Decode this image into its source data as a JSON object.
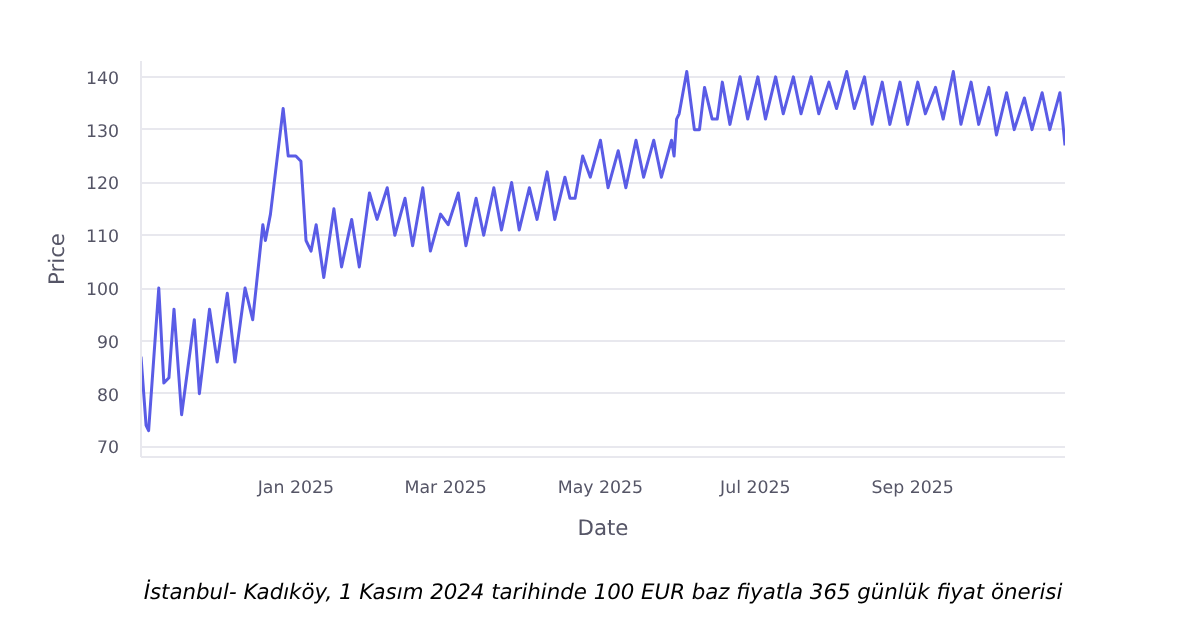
{
  "chart_data": {
    "type": "line",
    "xlabel": "Date",
    "ylabel": "Price",
    "x": [
      "2024-11-01",
      "2024-11-03",
      "2024-11-04",
      "2024-11-08",
      "2024-11-10",
      "2024-11-12",
      "2024-11-14",
      "2024-11-17",
      "2024-11-22",
      "2024-11-24",
      "2024-11-28",
      "2024-12-01",
      "2024-12-05",
      "2024-12-08",
      "2024-12-12",
      "2024-12-15",
      "2024-12-19",
      "2024-12-20",
      "2024-12-22",
      "2024-12-27",
      "2024-12-29",
      "2025-01-01",
      "2025-01-03",
      "2025-01-05",
      "2025-01-07",
      "2025-01-09",
      "2025-01-12",
      "2025-01-16",
      "2025-01-19",
      "2025-01-23",
      "2025-01-26",
      "2025-01-30",
      "2025-02-02",
      "2025-02-06",
      "2025-02-09",
      "2025-02-13",
      "2025-02-16",
      "2025-02-20",
      "2025-02-23",
      "2025-02-27",
      "2025-03-02",
      "2025-03-06",
      "2025-03-09",
      "2025-03-13",
      "2025-03-16",
      "2025-03-20",
      "2025-03-23",
      "2025-03-27",
      "2025-03-30",
      "2025-04-03",
      "2025-04-06",
      "2025-04-10",
      "2025-04-13",
      "2025-04-17",
      "2025-04-19",
      "2025-04-21",
      "2025-04-24",
      "2025-04-27",
      "2025-05-01",
      "2025-05-04",
      "2025-05-08",
      "2025-05-11",
      "2025-05-15",
      "2025-05-18",
      "2025-05-22",
      "2025-05-25",
      "2025-05-29",
      "2025-05-30",
      "2025-05-31",
      "2025-06-01",
      "2025-06-04",
      "2025-06-07",
      "2025-06-09",
      "2025-06-11",
      "2025-06-14",
      "2025-06-16",
      "2025-06-18",
      "2025-06-21",
      "2025-06-25",
      "2025-06-28",
      "2025-07-02",
      "2025-07-05",
      "2025-07-09",
      "2025-07-12",
      "2025-07-16",
      "2025-07-19",
      "2025-07-23",
      "2025-07-26",
      "2025-07-30",
      "2025-08-02",
      "2025-08-06",
      "2025-08-09",
      "2025-08-13",
      "2025-08-16",
      "2025-08-20",
      "2025-08-23",
      "2025-08-27",
      "2025-08-30",
      "2025-09-03",
      "2025-09-06",
      "2025-09-10",
      "2025-09-13",
      "2025-09-17",
      "2025-09-20",
      "2025-09-24",
      "2025-09-27",
      "2025-10-01",
      "2025-10-04",
      "2025-10-08",
      "2025-10-11",
      "2025-10-15",
      "2025-10-18",
      "2025-10-22",
      "2025-10-25",
      "2025-10-29",
      "2025-10-31"
    ],
    "series": [
      {
        "color": "#5a5ce6",
        "values": [
          87,
          74,
          73,
          100,
          82,
          83,
          96,
          76,
          94,
          80,
          96,
          86,
          99,
          86,
          100,
          94,
          112,
          109,
          114,
          134,
          125,
          125,
          124,
          109,
          107,
          112,
          102,
          115,
          104,
          113,
          104,
          118,
          113,
          119,
          110,
          117,
          108,
          119,
          107,
          114,
          112,
          118,
          108,
          117,
          110,
          119,
          111,
          120,
          111,
          119,
          113,
          122,
          113,
          121,
          117,
          117,
          125,
          121,
          128,
          119,
          126,
          119,
          128,
          121,
          128,
          121,
          128,
          125,
          132,
          133,
          141,
          130,
          130,
          138,
          132,
          132,
          139,
          131,
          140,
          132,
          140,
          132,
          140,
          133,
          140,
          133,
          140,
          133,
          139,
          134,
          141,
          134,
          140,
          131,
          139,
          131,
          139,
          131,
          139,
          133,
          138,
          132,
          141,
          131,
          139,
          131,
          138,
          129,
          137,
          130,
          136,
          130,
          137,
          130,
          137,
          127
        ]
      }
    ],
    "xlim": [
      "2024-11-01",
      "2025-10-31"
    ],
    "xticks": [
      {
        "value": "2025-01-01",
        "label": "Jan 2025"
      },
      {
        "value": "2025-03-01",
        "label": "Mar 2025"
      },
      {
        "value": "2025-05-01",
        "label": "May 2025"
      },
      {
        "value": "2025-07-01",
        "label": "Jul 2025"
      },
      {
        "value": "2025-09-01",
        "label": "Sep 2025"
      }
    ],
    "ylim": [
      68,
      143
    ],
    "yticks": [
      70,
      80,
      90,
      100,
      110,
      120,
      130,
      140
    ],
    "grid": "y",
    "annotations": [
      "İstanbul- Kadıköy, 1 Kasım 2024 tarihinde 100 EUR baz fiyatla 365 günlük fiyat önerisi"
    ]
  }
}
